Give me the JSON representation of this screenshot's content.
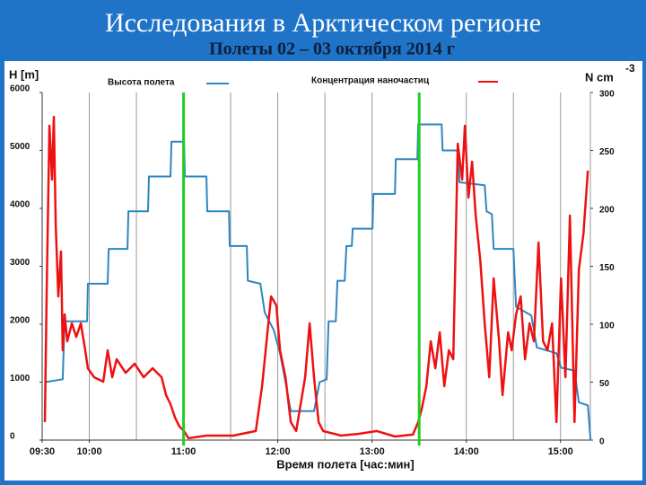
{
  "chart_data": {
    "type": "line",
    "title": "Исследования в Арктическом регионе",
    "subtitle": "Полеты 02 – 03 октября 2014 г",
    "y_label": "H [m]",
    "y2_label": "N cm",
    "y2_label_sup": "-3",
    "x_label": "Время полета [час:мин]",
    "xlim": [
      570,
      919
    ],
    "ylim": [
      0,
      6000
    ],
    "y2lim": [
      0,
      300
    ],
    "xticks": [
      {
        "value": 570,
        "label": "09:30"
      },
      {
        "value": 600,
        "label": "10:00"
      },
      {
        "value": 660,
        "label": "11:00"
      },
      {
        "value": 720,
        "label": "12:00"
      },
      {
        "value": 780,
        "label": "13:00"
      },
      {
        "value": 840,
        "label": "14:00"
      },
      {
        "value": 900,
        "label": "15:00"
      }
    ],
    "xgrid": [
      600,
      630,
      660,
      690,
      720,
      750,
      780,
      810,
      840,
      870,
      900
    ],
    "yticks": [
      0,
      1000,
      2000,
      3000,
      4000,
      5000,
      6000
    ],
    "y2ticks": [
      0,
      50,
      100,
      150,
      200,
      250,
      300
    ],
    "vlines": [
      {
        "value": 660,
        "color": "#22cc22"
      },
      {
        "value": 810,
        "color": "#22cc22"
      }
    ],
    "series": [
      {
        "name": "Высота полета",
        "color": "#2e86c1",
        "axis": "y",
        "x": [
          571.7,
          583.1,
          584.3,
          598.6,
          599.1,
          611.7,
          612.3,
          624.3,
          624.9,
          637.4,
          638.0,
          651.7,
          652.3,
          660.3,
          660.9,
          674.6,
          675.1,
          688.9,
          689.4,
          700.3,
          700.9,
          708.9,
          711.7,
          717.4,
          721.4,
          724.9,
          728.3,
          743.1,
          746.6,
          751.1,
          752.3,
          756.9,
          758.0,
          762.6,
          763.7,
          767.1,
          767.7,
          780.3,
          780.9,
          794.6,
          795.1,
          808.9,
          809.4,
          824.3,
          824.9,
          834.6,
          835.7,
          851.7,
          852.9,
          856.3,
          857.4,
          870.0,
          871.7,
          881.4,
          884.9,
          897.4,
          900.3,
          908.9,
          911.7,
          917.4,
          919.1
        ],
        "values": [
          1000,
          1050,
          2050,
          2050,
          2700,
          2700,
          3300,
          3300,
          3950,
          3950,
          4550,
          4550,
          5150,
          5150,
          4550,
          4550,
          3950,
          3950,
          3350,
          3350,
          2750,
          2700,
          2200,
          1900,
          1500,
          1000,
          500,
          500,
          1000,
          1050,
          2050,
          2050,
          2750,
          2750,
          3350,
          3350,
          3650,
          3650,
          4250,
          4250,
          4850,
          4850,
          5450,
          5450,
          5000,
          5000,
          4450,
          4400,
          3950,
          3900,
          3300,
          3300,
          2300,
          2150,
          1600,
          1500,
          1250,
          1200,
          650,
          600,
          0
        ]
      },
      {
        "name": "Концентрация наночастиц",
        "color": "#ee1111",
        "axis": "y2",
        "x": [
          571.7,
          572.9,
          574.6,
          576.3,
          577.4,
          578.6,
          580.3,
          582.0,
          583.1,
          584.3,
          586.0,
          588.9,
          591.7,
          594.6,
          597.4,
          599.1,
          603.1,
          608.9,
          611.7,
          614.6,
          617.4,
          623.1,
          628.9,
          634.6,
          640.3,
          646.0,
          648.9,
          651.7,
          654.6,
          657.4,
          660.3,
          663.1,
          674.6,
          691.7,
          706.0,
          710.0,
          713.4,
          715.7,
          719.1,
          721.4,
          724.9,
          728.3,
          731.7,
          737.4,
          740.3,
          743.1,
          746.0,
          748.9,
          760.3,
          771.7,
          783.1,
          794.6,
          806.0,
          809.4,
          811.7,
          814.6,
          817.4,
          820.3,
          823.1,
          826.0,
          828.9,
          831.7,
          834.6,
          837.4,
          839.1,
          841.4,
          843.7,
          846.0,
          848.9,
          851.7,
          854.6,
          857.4,
          860.9,
          863.1,
          866.6,
          868.9,
          871.7,
          874.6,
          877.4,
          880.3,
          883.1,
          886.0,
          888.9,
          891.7,
          894.6,
          897.4,
          900.3,
          903.1,
          906.0,
          908.9,
          911.7,
          914.6,
          917.4
        ],
        "values": [
          15.5,
          131.8,
          271.3,
          224.8,
          279,
          186,
          124,
          162.8,
          77.5,
          108.5,
          85.3,
          100.8,
          89.1,
          100.8,
          77.5,
          62,
          54.3,
          50.4,
          77.5,
          54.3,
          69.8,
          58.1,
          65.9,
          54.3,
          62,
          54.3,
          38.8,
          31,
          19.4,
          11.6,
          7.8,
          1.6,
          3.9,
          3.9,
          7.8,
          46.5,
          93,
          124,
          116.3,
          77.5,
          54.3,
          15.5,
          7.8,
          54.3,
          100.8,
          54.3,
          15.5,
          7.8,
          3.9,
          5.4,
          7.8,
          3.1,
          4.7,
          15.5,
          27.1,
          46.5,
          85.3,
          62,
          93,
          46.5,
          77.5,
          69.8,
          255.8,
          224.8,
          271.3,
          209.3,
          240.3,
          193.8,
          155,
          100.8,
          54.3,
          139.5,
          85.3,
          38.8,
          93,
          77.5,
          108.5,
          124,
          69.8,
          100.8,
          85.3,
          170.5,
          85.3,
          77.5,
          100.8,
          15.5,
          139.5,
          54.3,
          193.8,
          15.5,
          147.3,
          178.3,
          232.5
        ]
      }
    ]
  }
}
